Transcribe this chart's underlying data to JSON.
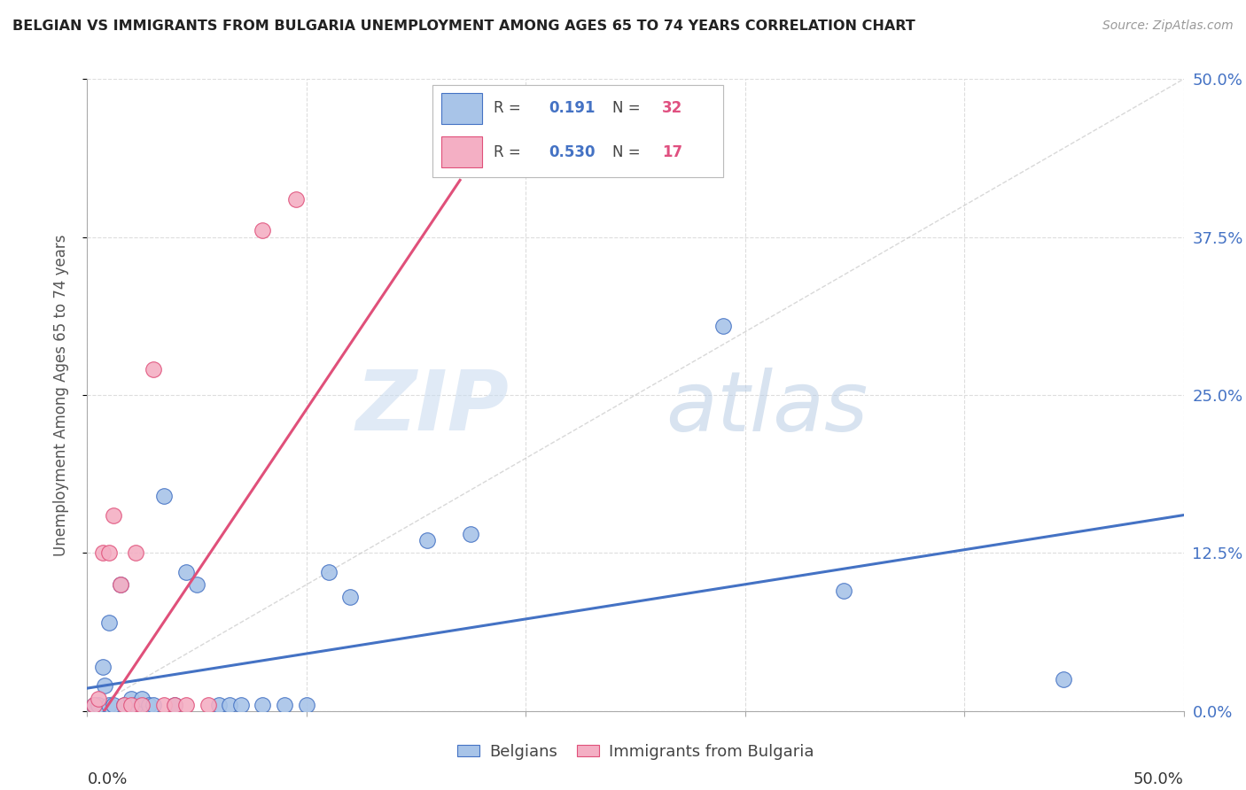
{
  "title": "BELGIAN VS IMMIGRANTS FROM BULGARIA UNEMPLOYMENT AMONG AGES 65 TO 74 YEARS CORRELATION CHART",
  "source": "Source: ZipAtlas.com",
  "ylabel": "Unemployment Among Ages 65 to 74 years",
  "ytick_labels": [
    "0.0%",
    "12.5%",
    "25.0%",
    "37.5%",
    "50.0%"
  ],
  "ytick_values": [
    0.0,
    0.125,
    0.25,
    0.375,
    0.5
  ],
  "xlim": [
    0,
    0.5
  ],
  "ylim": [
    0,
    0.5
  ],
  "belgian_color": "#a8c4e8",
  "bulgarian_color": "#f4afc4",
  "trendline_belgian_color": "#4472c4",
  "trendline_bulgarian_color": "#e0507a",
  "diagonal_color": "#c8c8c8",
  "legend_r_belgian": "0.191",
  "legend_n_belgian": "32",
  "legend_r_bulgarian": "0.530",
  "legend_n_bulgarian": "17",
  "belgians_x": [
    0.003,
    0.005,
    0.007,
    0.008,
    0.01,
    0.01,
    0.012,
    0.015,
    0.017,
    0.02,
    0.022,
    0.025,
    0.028,
    0.03,
    0.035,
    0.04,
    0.045,
    0.05,
    0.06,
    0.065,
    0.07,
    0.08,
    0.09,
    0.1,
    0.11,
    0.12,
    0.155,
    0.175,
    0.21,
    0.29,
    0.345,
    0.445
  ],
  "belgians_y": [
    0.005,
    0.005,
    0.035,
    0.02,
    0.005,
    0.07,
    0.005,
    0.1,
    0.005,
    0.01,
    0.005,
    0.01,
    0.005,
    0.005,
    0.17,
    0.005,
    0.11,
    0.1,
    0.005,
    0.005,
    0.005,
    0.005,
    0.005,
    0.005,
    0.11,
    0.09,
    0.135,
    0.14,
    0.44,
    0.305,
    0.095,
    0.025
  ],
  "bulgarians_x": [
    0.003,
    0.005,
    0.007,
    0.01,
    0.012,
    0.015,
    0.017,
    0.02,
    0.022,
    0.025,
    0.03,
    0.035,
    0.04,
    0.045,
    0.055,
    0.08,
    0.095
  ],
  "bulgarians_y": [
    0.005,
    0.01,
    0.125,
    0.125,
    0.155,
    0.1,
    0.005,
    0.005,
    0.125,
    0.005,
    0.27,
    0.005,
    0.005,
    0.005,
    0.005,
    0.38,
    0.405
  ],
  "watermark_zip": "ZIP",
  "watermark_atlas": "atlas",
  "background_color": "#ffffff"
}
